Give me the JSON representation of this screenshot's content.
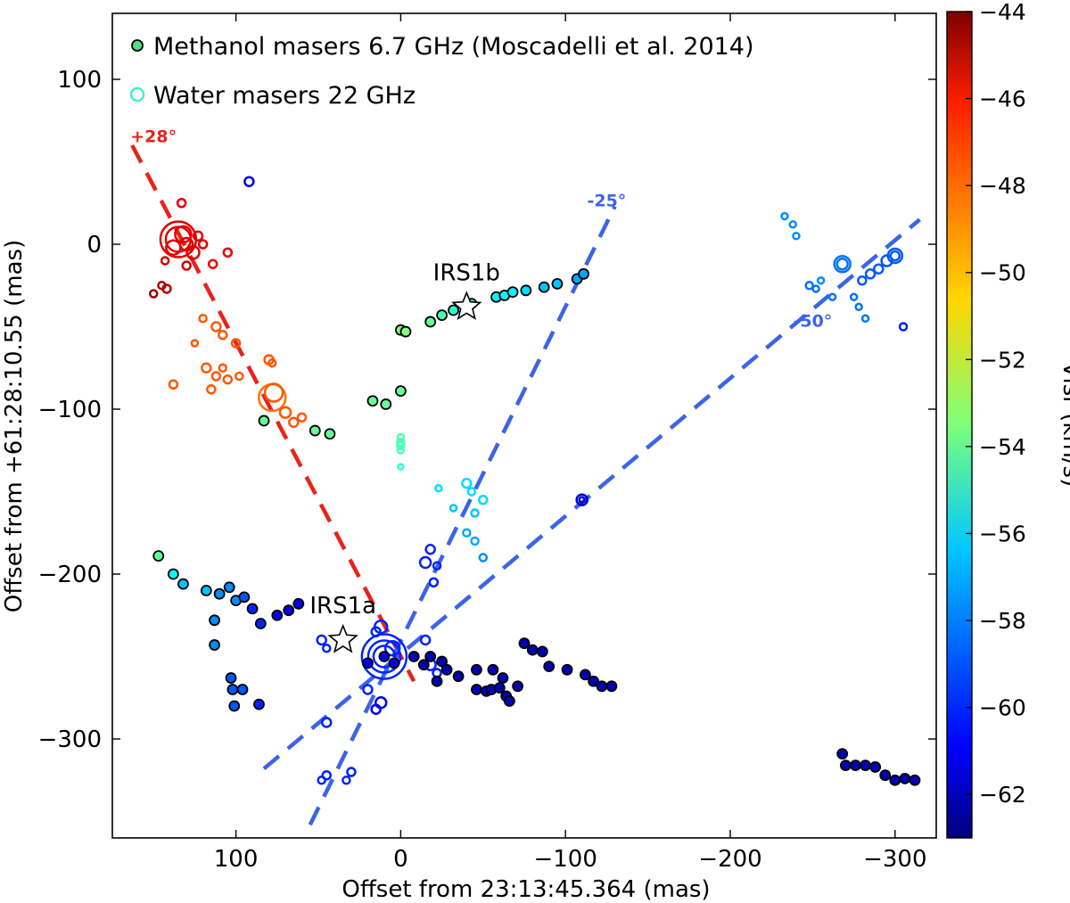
{
  "chart_data": {
    "type": "scatter",
    "title": "",
    "xlabel": "Offset from 23:13:45.364 (mas)",
    "ylabel": "Offset from +61:28:10.55 (mas)",
    "xlim": [
      175,
      -325
    ],
    "ylim": [
      -360,
      140
    ],
    "xticks": [
      100,
      0,
      -100,
      -200,
      -300
    ],
    "xtick_labels": [
      "100",
      "0",
      "−100",
      "−200",
      "−300"
    ],
    "yticks": [
      100,
      0,
      -100,
      -200,
      -300
    ],
    "ytick_labels": [
      "100",
      "0",
      "−100",
      "−200",
      "−300"
    ],
    "grid": false,
    "legend_position": "top-left",
    "legend": [
      {
        "label": "Methanol masers 6.7 GHz (Moscadelli et al. 2014)",
        "marker": "filled-circle",
        "color": "#55dd88"
      },
      {
        "label": "Water masers 22 GHz",
        "marker": "open-circle",
        "color": "#44eecc"
      }
    ],
    "colorbar": {
      "label": "Vlsr (km/s)",
      "range": [
        -63,
        -44
      ],
      "ticks": [
        -44,
        -46,
        -48,
        -50,
        -52,
        -54,
        -56,
        -58,
        -60,
        -62
      ],
      "tick_labels": [
        "−44",
        "−46",
        "−48",
        "−50",
        "−52",
        "−54",
        "−56",
        "−58",
        "−60",
        "−62"
      ]
    },
    "lines": [
      {
        "name": "axis-plus28",
        "label": "+28°",
        "color": "#e8231a",
        "points": [
          [
            163,
            60
          ],
          [
            -8,
            -265
          ]
        ]
      },
      {
        "name": "axis-minus25",
        "label": "-25°",
        "color": "#3c64e8",
        "points": [
          [
            55,
            -352
          ],
          [
            -130,
            23
          ]
        ]
      },
      {
        "name": "axis-minus50",
        "label": "-50°",
        "color": "#3c64e8",
        "points": [
          [
            83,
            -318
          ],
          [
            -315,
            15
          ]
        ]
      }
    ],
    "stars": [
      {
        "label": "IRS1b",
        "x": -40,
        "y": -38
      },
      {
        "label": "IRS1a",
        "x": 35,
        "y": -240
      }
    ],
    "series": [
      {
        "name": "Methanol masers 6.7 GHz",
        "marker": "filled",
        "points": [
          [
            0,
            -52,
            -53.5
          ],
          [
            -3,
            -53,
            -53.5
          ],
          [
            -18,
            -47,
            -54
          ],
          [
            -25,
            -43,
            -54.5
          ],
          [
            -32,
            -40,
            -55
          ],
          [
            -43,
            -36,
            -55
          ],
          [
            -58,
            -32,
            -56
          ],
          [
            -63,
            -31,
            -56
          ],
          [
            -68,
            -29,
            -56
          ],
          [
            -76,
            -28,
            -56.5
          ],
          [
            -87,
            -26,
            -57
          ],
          [
            -95,
            -24,
            -57
          ],
          [
            -107,
            -21,
            -57.5
          ],
          [
            -111,
            -18,
            -57.5
          ],
          [
            17,
            -95,
            -54
          ],
          [
            9,
            -97,
            -54
          ],
          [
            0,
            -89,
            -54
          ],
          [
            52,
            -113,
            -54
          ],
          [
            43,
            -115,
            -54
          ],
          [
            83,
            -107,
            -54
          ],
          [
            147,
            -189,
            -54
          ],
          [
            138,
            -200,
            -56
          ],
          [
            132,
            -206,
            -57
          ],
          [
            118,
            -210,
            -57
          ],
          [
            110,
            -212,
            -58
          ],
          [
            104,
            -208,
            -58
          ],
          [
            100,
            -216,
            -58
          ],
          [
            95,
            -214,
            -59
          ],
          [
            90,
            -221,
            -60
          ],
          [
            85,
            -230,
            -60
          ],
          [
            75,
            -225,
            -61
          ],
          [
            68,
            -222,
            -61
          ],
          [
            62,
            -218,
            -61
          ],
          [
            113,
            -228,
            -58
          ],
          [
            113,
            -243,
            -58
          ],
          [
            103,
            -263,
            -59
          ],
          [
            96,
            -270,
            -59
          ],
          [
            102,
            -270,
            -59
          ],
          [
            101,
            -280,
            -59
          ],
          [
            86,
            -279,
            -60
          ],
          [
            20,
            -254,
            -61
          ],
          [
            10,
            -250,
            -61
          ],
          [
            4,
            -254,
            -61
          ],
          [
            -8,
            -250,
            -62
          ],
          [
            -14,
            -255,
            -62
          ],
          [
            -18,
            -250,
            -62
          ],
          [
            -25,
            -253,
            -62
          ],
          [
            -22,
            -265,
            -62
          ],
          [
            -28,
            -258,
            -62
          ],
          [
            -35,
            -262,
            -62
          ],
          [
            -46,
            -258,
            -62
          ],
          [
            -56,
            -258,
            -62
          ],
          [
            -62,
            -263,
            -62
          ],
          [
            -46,
            -270,
            -62
          ],
          [
            -52,
            -271,
            -62
          ],
          [
            -55,
            -270,
            -62
          ],
          [
            -60,
            -269,
            -62
          ],
          [
            -64,
            -274,
            -62
          ],
          [
            -71,
            -268,
            -62
          ],
          [
            -66,
            -277,
            -62
          ],
          [
            -75,
            -242,
            -62
          ],
          [
            -80,
            -246,
            -62
          ],
          [
            -86,
            -247,
            -62
          ],
          [
            -90,
            -256,
            -62
          ],
          [
            -101,
            -258,
            -62
          ],
          [
            -112,
            -261,
            -62
          ],
          [
            -117,
            -265,
            -62
          ],
          [
            -122,
            -268,
            -62
          ],
          [
            -128,
            -268,
            -62
          ],
          [
            -268,
            -309,
            -62
          ],
          [
            -270,
            -316,
            -62
          ],
          [
            -276,
            -316,
            -62
          ],
          [
            -282,
            -316,
            -62
          ],
          [
            -288,
            -317,
            -62
          ],
          [
            -294,
            -322,
            -62
          ],
          [
            -300,
            -325,
            -62
          ],
          [
            -306,
            -324,
            -62
          ],
          [
            -312,
            -325,
            -62
          ]
        ]
      },
      {
        "name": "Water masers 22 GHz",
        "marker": "open",
        "points": [
          [
            135,
            3,
            -45.8,
            20
          ],
          [
            135,
            3,
            -45.8,
            14
          ],
          [
            132,
            6,
            -45.8,
            9
          ],
          [
            130,
            0,
            -45.8,
            7
          ],
          [
            126,
            -5,
            -45.8,
            7
          ],
          [
            138,
            -2,
            -45.8,
            8
          ],
          [
            133,
            25,
            -46,
            4.5
          ],
          [
            123,
            5,
            -45.8,
            5
          ],
          [
            120,
            0,
            -45.8,
            4.5
          ],
          [
            130,
            -13,
            -45.5,
            4.5
          ],
          [
            143,
            -10,
            -45.5,
            4
          ],
          [
            114,
            -12,
            -46,
            4.5
          ],
          [
            105,
            -5,
            -46,
            4.5
          ],
          [
            142,
            -27,
            -45,
            4.5
          ],
          [
            145,
            -25,
            -45,
            4
          ],
          [
            150,
            -30,
            -44.5,
            4
          ],
          [
            112,
            -50,
            -48,
            5
          ],
          [
            108,
            -55,
            -48,
            4.5
          ],
          [
            100,
            -60,
            -48,
            4.5
          ],
          [
            120,
            -45,
            -48,
            4
          ],
          [
            125,
            -60,
            -48,
            3.5
          ],
          [
            118,
            -75,
            -48,
            5
          ],
          [
            112,
            -80,
            -48,
            4.5
          ],
          [
            108,
            -75,
            -48,
            4
          ],
          [
            105,
            -82,
            -48,
            4.5
          ],
          [
            98,
            -80,
            -48,
            4
          ],
          [
            115,
            -88,
            -48,
            4.5
          ],
          [
            138,
            -85,
            -48,
            4.5
          ],
          [
            80,
            -70,
            -48,
            5
          ],
          [
            78,
            -72,
            -48,
            4
          ],
          [
            78,
            -93,
            -48.5,
            15
          ],
          [
            77,
            -90,
            -48,
            10
          ],
          [
            70,
            -102,
            -48,
            6
          ],
          [
            65,
            -108,
            -48,
            5
          ],
          [
            60,
            -105,
            -48,
            4.5
          ],
          [
            0,
            -117,
            -54.5,
            3.5
          ],
          [
            0,
            -120,
            -54.5,
            4
          ],
          [
            0,
            -122,
            -54.5,
            4
          ],
          [
            0,
            -125,
            -54.5,
            3.5
          ],
          [
            0,
            -135,
            -55,
            3
          ],
          [
            -40,
            -145,
            -56.5,
            5
          ],
          [
            -43,
            -150,
            -56.5,
            4
          ],
          [
            -50,
            -155,
            -56.5,
            4.5
          ],
          [
            -45,
            -163,
            -57,
            4
          ],
          [
            -40,
            -175,
            -57.5,
            4
          ],
          [
            -45,
            -180,
            -57.5,
            4
          ],
          [
            -50,
            -190,
            -58,
            4
          ],
          [
            -23,
            -148,
            -56.5,
            3.5
          ],
          [
            -32,
            -160,
            -57,
            3.5
          ],
          [
            -15,
            -193,
            -60,
            6
          ],
          [
            -18,
            -185,
            -60,
            5
          ],
          [
            -20,
            -205,
            -60,
            4.5
          ],
          [
            -22,
            -195,
            -60,
            4
          ],
          [
            -110,
            -155,
            -61.5,
            6
          ],
          [
            -110,
            -155,
            -61.5,
            3
          ],
          [
            92,
            38,
            -61,
            5
          ],
          [
            -268,
            -12,
            -58.5,
            9
          ],
          [
            -268,
            -12,
            -58.5,
            6
          ],
          [
            -300,
            -7,
            -59,
            8
          ],
          [
            -300,
            -7,
            -59,
            5
          ],
          [
            -295,
            -10,
            -59,
            6
          ],
          [
            -290,
            -15,
            -59,
            5
          ],
          [
            -285,
            -18,
            -59,
            5
          ],
          [
            -280,
            -22,
            -59,
            4.5
          ],
          [
            -305,
            -50,
            -60,
            4
          ],
          [
            -248,
            -25,
            -58.5,
            4
          ],
          [
            -252,
            -27,
            -58.5,
            3.5
          ],
          [
            -255,
            -22,
            -58,
            3.5
          ],
          [
            -262,
            -32,
            -58.5,
            3.5
          ],
          [
            -275,
            -32,
            -58.5,
            3.5
          ],
          [
            -278,
            -38,
            -58.5,
            3.5
          ],
          [
            -282,
            -45,
            -58.5,
            3.5
          ],
          [
            -233,
            17,
            -58,
            3.5
          ],
          [
            -238,
            12,
            -58,
            3.5
          ],
          [
            -240,
            5,
            -58,
            3.5
          ],
          [
            10,
            -250,
            -60,
            25
          ],
          [
            10,
            -250,
            -60,
            18
          ],
          [
            10,
            -250,
            -60,
            12
          ],
          [
            5,
            -245,
            -60,
            8
          ],
          [
            12,
            -232,
            -60,
            7
          ],
          [
            15,
            -235,
            -60,
            5
          ],
          [
            -15,
            -240,
            -60,
            5
          ],
          [
            -18,
            -255,
            -60,
            6
          ],
          [
            -22,
            -260,
            -60,
            4.5
          ],
          [
            12,
            -278,
            -61,
            6
          ],
          [
            15,
            -282,
            -61,
            5
          ],
          [
            20,
            -270,
            -60,
            5
          ],
          [
            48,
            -240,
            -60,
            5
          ],
          [
            45,
            -245,
            -60,
            4
          ],
          [
            45,
            -290,
            -60,
            5
          ],
          [
            30,
            -320,
            -60,
            4.5
          ],
          [
            33,
            -325,
            -60,
            4
          ],
          [
            45,
            -322,
            -60,
            4.5
          ],
          [
            48,
            -325,
            -60,
            4
          ]
        ]
      }
    ]
  }
}
